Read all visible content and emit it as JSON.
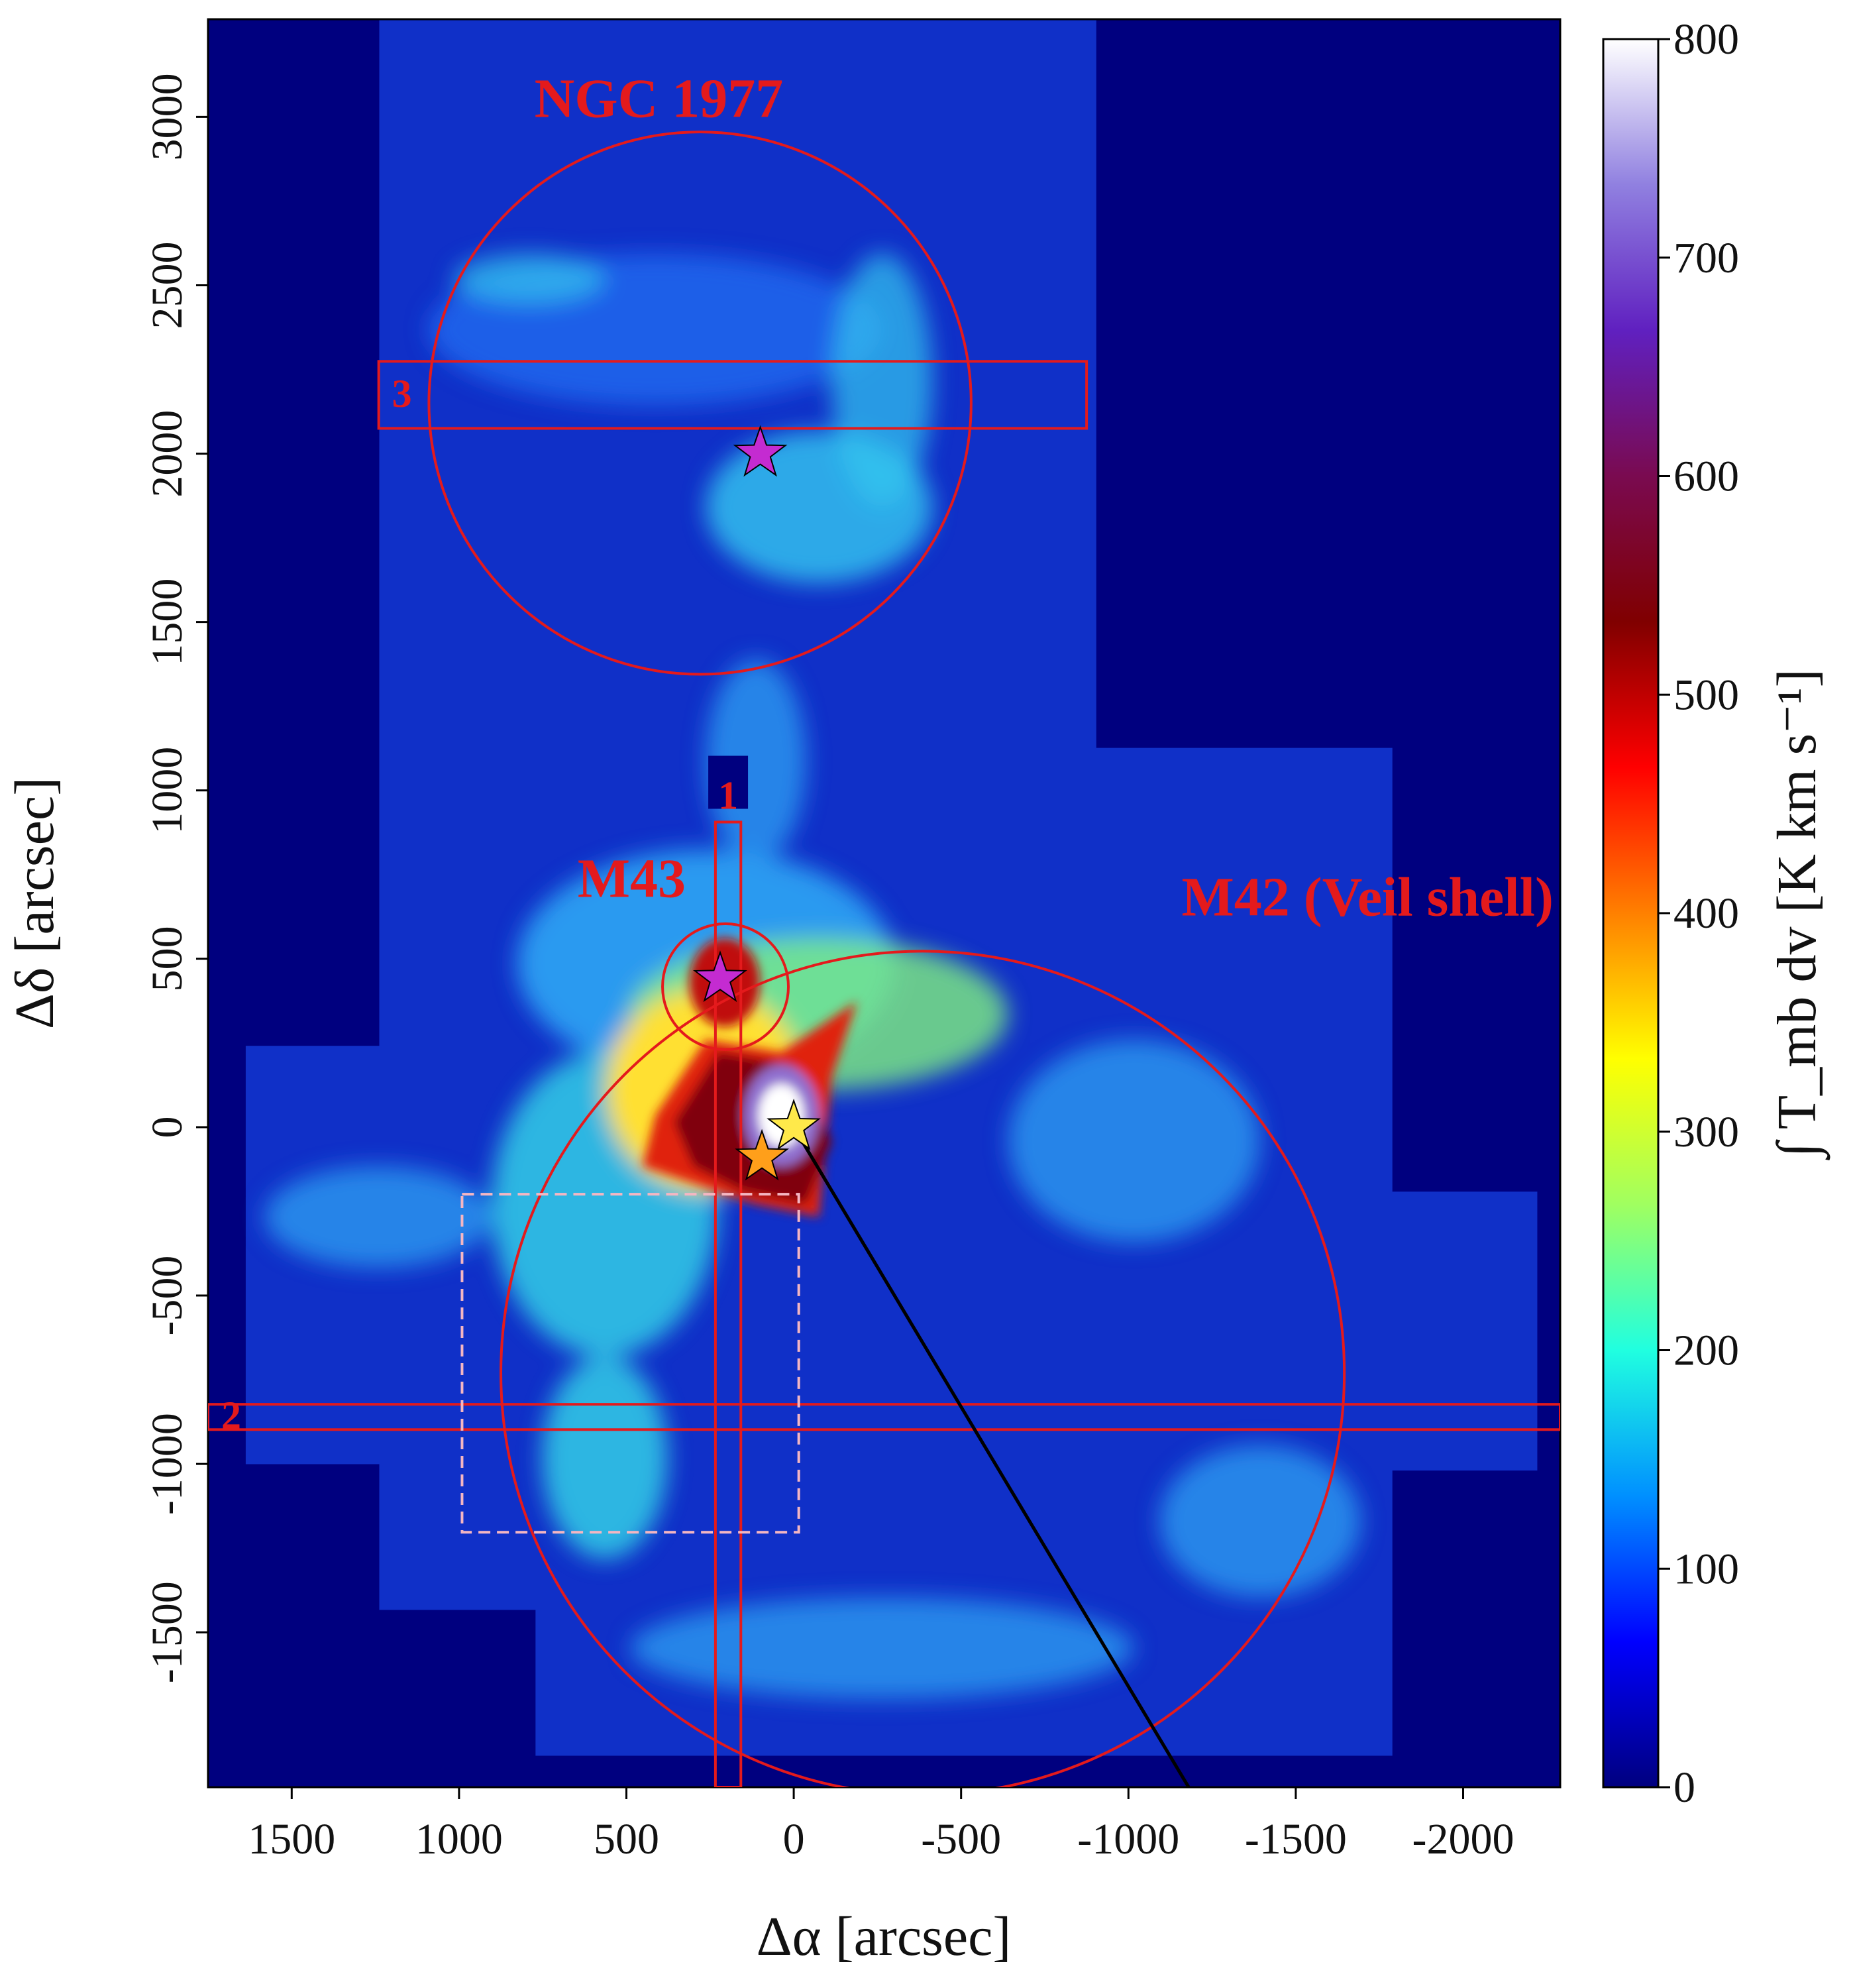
{
  "chart_data": {
    "type": "map",
    "xlabel": "Δα [arcsec]",
    "ylabel": "Δδ [arcsec]",
    "xlim": [
      1750,
      -2290
    ],
    "ylim": [
      -1960,
      3290
    ],
    "xticks": [
      1500,
      1000,
      500,
      0,
      -500,
      -1000,
      -1500,
      -2000
    ],
    "yticks": [
      -1500,
      -1000,
      -500,
      0,
      500,
      1000,
      1500,
      2000,
      2500,
      3000
    ],
    "colorbar": {
      "label": "∫ T_mb dv [K km s⁻¹]",
      "lim": [
        0,
        800
      ],
      "ticks": [
        0,
        100,
        200,
        300,
        400,
        500,
        600,
        700,
        800
      ],
      "colormap": [
        "#00007f",
        "#0000ff",
        "#0090ff",
        "#20ffe0",
        "#a0ff60",
        "#ffff00",
        "#ff8000",
        "#ff0000",
        "#800000",
        "#7a0a50",
        "#6020c0",
        "#9080e0",
        "#ffffff"
      ]
    },
    "region_color": "#e41a1c",
    "regions": [
      {
        "shape": "circle",
        "label": "NGC 1977",
        "cx": 280,
        "cy": 2150,
        "r": 810
      },
      {
        "shape": "circle",
        "label": "M43",
        "cx": 204,
        "cy": 417,
        "r": 188
      },
      {
        "shape": "circle",
        "label": "M42 (Veil shell)",
        "cx": -385,
        "cy": -730,
        "r": 1260
      },
      {
        "shape": "box",
        "label": "1",
        "x": [
          234,
          158
        ],
        "y": [
          906,
          -1960
        ]
      },
      {
        "shape": "box",
        "label": "2",
        "x": [
          1750,
          -2290
        ],
        "y": [
          -823,
          -898
        ]
      },
      {
        "shape": "box",
        "label": "3",
        "x": [
          1240,
          -875
        ],
        "y": [
          2274,
          2075
        ]
      }
    ],
    "dashed_box": {
      "color": "#f4b6c2",
      "x": [
        991,
        -15
      ],
      "y": [
        -199,
        -1203
      ]
    },
    "stars": [
      {
        "x": 100,
        "y": 2000,
        "color": "#c42bd1"
      },
      {
        "x": 220,
        "y": 440,
        "color": "#c42bd1"
      },
      {
        "x": 0,
        "y": 0,
        "color": "#ffe94a"
      },
      {
        "x": 95,
        "y": -90,
        "color": "#ff9f1a"
      }
    ],
    "line": {
      "color": "#000000",
      "x": [
        0,
        -1180
      ],
      "y": [
        0,
        -1960
      ]
    }
  }
}
